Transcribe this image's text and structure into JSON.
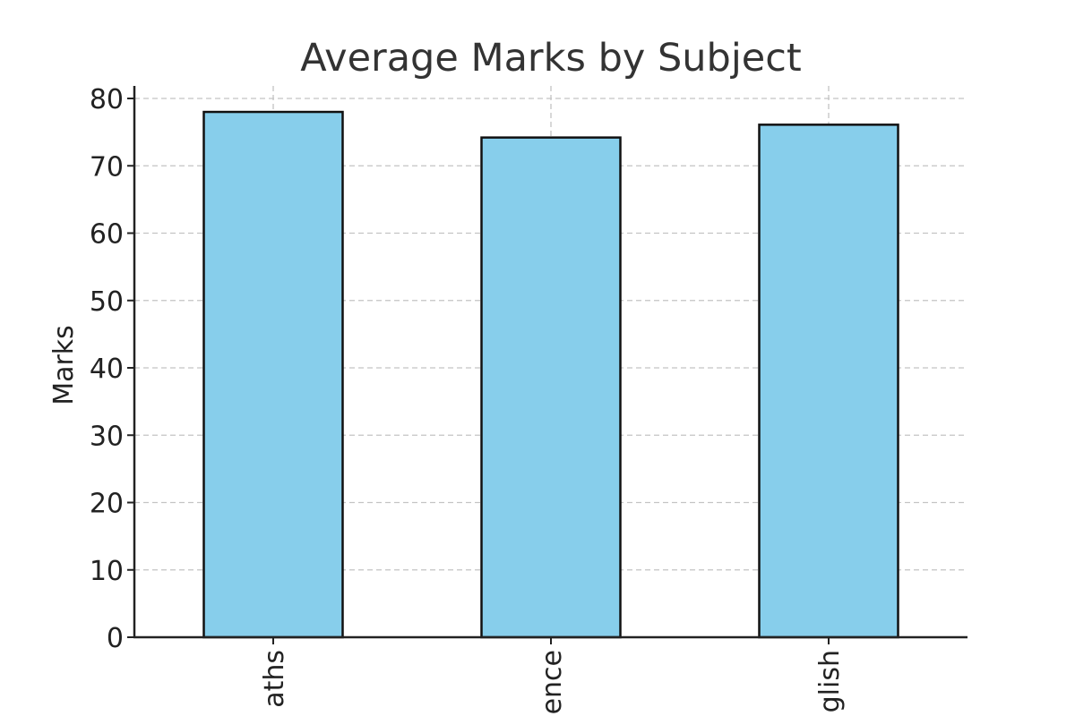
{
  "chart_data": {
    "type": "bar",
    "title": "Average Marks by Subject",
    "xlabel": "",
    "ylabel": "Marks",
    "categories": [
      "Maths",
      "Science",
      "English"
    ],
    "visible_tick_labels": [
      "aths",
      "ence",
      "glish"
    ],
    "values": [
      78,
      74.2,
      76.1
    ],
    "ylim": [
      0,
      82
    ],
    "yticks": [
      0,
      10,
      20,
      30,
      40,
      50,
      60,
      70,
      80
    ],
    "grid": true,
    "grid_style": "dashed",
    "legend": "none",
    "colors": {
      "bar_fill": "#87CEEB",
      "bar_edge": "#111111",
      "grid": "#c4c4c4",
      "axis": "#222222"
    }
  }
}
